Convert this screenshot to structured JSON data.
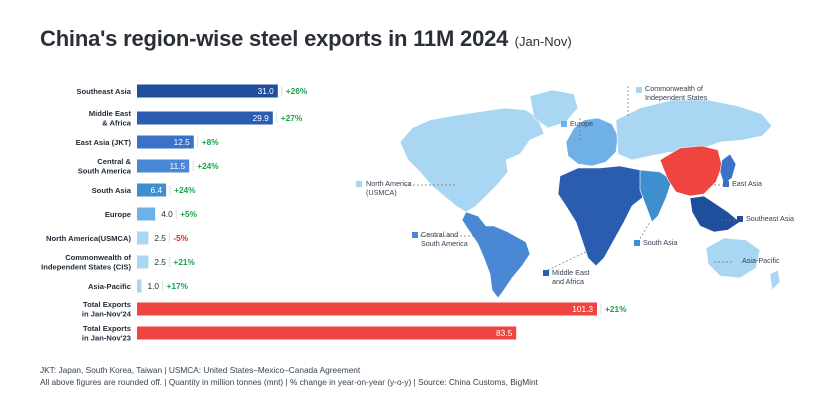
{
  "title": {
    "main": "China's region-wise steel exports in 11M 2024",
    "sub": "(Jan-Nov)"
  },
  "chart_data": {
    "type": "bar",
    "orientation": "horizontal",
    "unit": "million tonnes (mnt)",
    "categories": [
      [
        "Southeast Asia"
      ],
      [
        "Middle East",
        "& Africa"
      ],
      [
        "East Asia (JKT)"
      ],
      [
        "Central &",
        "South America"
      ],
      [
        "South Asia"
      ],
      [
        "Europe"
      ],
      [
        "North America(USMCA)"
      ],
      [
        "Commonwealth of",
        "Independent States (CIS)"
      ],
      [
        "Asia-Pacific"
      ],
      [
        "Total Exports",
        "in Jan-Nov'24"
      ],
      [
        "Total Exports",
        "in Jan-Nov'23"
      ]
    ],
    "values": [
      31.0,
      29.9,
      12.5,
      11.5,
      6.4,
      4.0,
      2.5,
      2.5,
      1.0,
      101.3,
      83.5
    ],
    "value_labels": [
      "31.0",
      "29.9",
      "12.5",
      "11.5",
      "6.4",
      "4.0",
      "2.5",
      "2.5",
      "1.0",
      "101.3",
      "83.5"
    ],
    "changes": [
      "+26%",
      "+27%",
      "+8%",
      "+24%",
      "+24%",
      "+5%",
      "-5%",
      "+21%",
      "+17%",
      "+21%",
      ""
    ],
    "bar_colors": [
      "#1f4e9c",
      "#2a5db0",
      "#3a72c9",
      "#4a88d6",
      "#3f8fd0",
      "#6fb1e6",
      "#a9d6f3",
      "#a9d6f3",
      "#a9d6f3",
      "#ef4540",
      "#ef4540"
    ],
    "positive_color": "#16a34a",
    "negative_color": "#dc2626",
    "grid": false
  },
  "map": {
    "labels": {
      "north_america": [
        "North America",
        "(USMCA)"
      ],
      "cis": [
        "Commonwealth of",
        "Independent States"
      ],
      "europe": [
        "Europe"
      ],
      "east_asia": [
        "East Asia"
      ],
      "southeast_asia": [
        "Southeast Asia"
      ],
      "south_asia": [
        "South Asia"
      ],
      "central_south_america": [
        "Central and",
        "South America"
      ],
      "middle_east_africa": [
        "Middle East",
        "and Africa"
      ],
      "asia_pacific": [
        "Asia-Pacific"
      ]
    },
    "colors": {
      "north_america": "#a9d6f3",
      "cis": "#a9d6f3",
      "europe": "#6fb1e6",
      "east_asia": "#3a72c9",
      "southeast_asia": "#1f4e9c",
      "south_asia": "#3f8fd0",
      "central_south_america": "#4a88d6",
      "middle_east_africa": "#2a5db0",
      "asia_pacific": "#a9d6f3",
      "china": "#ef4540"
    }
  },
  "notes": [
    "JKT: Japan, South Korea, Taiwan | USMCA: United States–Mexico–Canada Agreement",
    "All above figures are rounded off. | Quantity in million tonnes (mnt) | % change in year-on-year (y-o-y) | Source: China Customs, BigMint"
  ]
}
